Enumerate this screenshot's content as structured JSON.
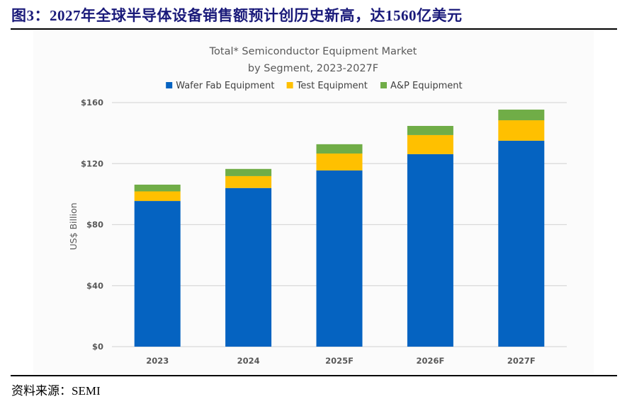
{
  "figure": {
    "title": "图3：2027年全球半导体设备销售额预计创历史新高，达1560亿美元",
    "source": "资料来源：SEMI"
  },
  "chart_data": {
    "type": "bar",
    "stacked": true,
    "title": "Total* Semiconductor Equipment Market",
    "subtitle": "by Segment, 2023-2027F",
    "xlabel": "",
    "ylabel": "US$ Billion",
    "categories": [
      "2023",
      "2024",
      "2025F",
      "2026F",
      "2027F"
    ],
    "series": [
      {
        "name": "Wafer Fab Equipment",
        "color": "#0563c1",
        "values": [
          95.5,
          104.0,
          115.5,
          126.2,
          135.0
        ]
      },
      {
        "name": "Test Equipment",
        "color": "#ffc000",
        "values": [
          6.3,
          7.8,
          11.1,
          12.5,
          13.4
        ]
      },
      {
        "name": "A&P Equipment",
        "color": "#70ad47",
        "values": [
          4.4,
          4.7,
          6.1,
          6.0,
          7.0
        ]
      }
    ],
    "totals": [
      106.2,
      116.5,
      132.7,
      144.7,
      155.4
    ],
    "ylim": [
      0,
      160
    ],
    "yticks": [
      0,
      40,
      80,
      120,
      160
    ],
    "ytick_labels": [
      "$0",
      "$40",
      "$80",
      "$120",
      "$160"
    ],
    "grid": true,
    "grid_color": "#d9d9d9",
    "legend_position": "top-center"
  }
}
